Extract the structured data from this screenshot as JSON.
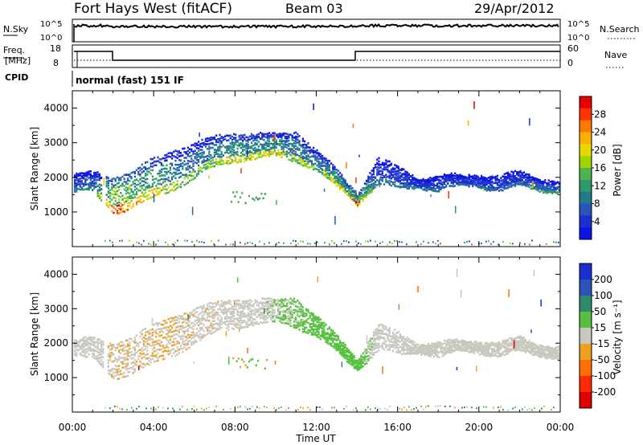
{
  "header": {
    "station": "Fort Hays West (fitACF)",
    "beam": "Beam 03",
    "date": "29/Apr/2012"
  },
  "status_panel": {
    "nsky_label": "N.Sky",
    "nsky_ticks": [
      "10^5",
      "10^0"
    ],
    "nsearch_label": "N.Search",
    "nsearch_ticks": [
      "10^5",
      "10^0"
    ],
    "freq_label_1": "Freq.",
    "freq_label_2": "[MHz]",
    "freq_ticks": [
      "18",
      "8"
    ],
    "nave_label": "Nave",
    "nave_ticks": [
      "60",
      "0"
    ],
    "cpid_label": "CPID",
    "cpid_text": "normal (fast) 151 IF"
  },
  "power_scale": {
    "label": "Power [dB]",
    "ticks": [
      "28",
      "24",
      "20",
      "16",
      "12",
      "8",
      "4"
    ],
    "colors": [
      "#e60000",
      "#ff3300",
      "#ff7a00",
      "#ffb000",
      "#e8d800",
      "#9fd400",
      "#4fb34f",
      "#2e9a6a",
      "#1f7a8c",
      "#2a54b8",
      "#1a2fd0",
      "#0a14e6"
    ]
  },
  "velocity_scale": {
    "label": "Velocity [m s⁻¹]",
    "ticks": [
      "200",
      "100",
      "50",
      "15",
      "-15",
      "-50",
      "-100",
      "-200"
    ],
    "colors": [
      "#1a2fd0",
      "#2a54b8",
      "#2e8a6a",
      "#58c040",
      "#c8c8c0",
      "#f0a020",
      "#ff7000",
      "#ff2a00",
      "#e00000"
    ]
  },
  "x_axis": {
    "title": "Time UT",
    "ticks": [
      "00:00",
      "04:00",
      "08:00",
      "12:00",
      "16:00",
      "20:00",
      "00:00"
    ]
  },
  "chart_data": [
    {
      "type": "heatmap",
      "title": "Fort Hays West (fitACF) Beam 03 29/Apr/2012",
      "quantity": "Power",
      "xlabel": "Time UT",
      "ylabel": "Slant Range [km]",
      "colorbar_label": "Power [dB]",
      "x_range_hours": [
        0,
        24
      ],
      "ylim": [
        0,
        4500
      ],
      "y_ticks": [
        1000,
        2000,
        3000,
        4000
      ],
      "colorbar_range": [
        0,
        32
      ],
      "echo_band": {
        "time_hours": [
          0,
          1,
          2,
          3,
          4,
          5,
          6,
          7,
          8,
          9,
          10,
          11,
          12,
          13,
          14,
          15,
          16,
          17,
          18,
          19,
          20,
          21,
          22,
          23,
          24
        ],
        "lower_km": [
          1600,
          1550,
          1000,
          1150,
          1400,
          1700,
          2000,
          2300,
          2500,
          2550,
          2600,
          2500,
          2200,
          1700,
          1250,
          1800,
          1650,
          1750,
          1600,
          1750,
          1750,
          1600,
          1750,
          1650,
          1550
        ],
        "upper_km": [
          2100,
          2150,
          2100,
          2250,
          2600,
          2900,
          3050,
          3200,
          3350,
          3300,
          3250,
          3400,
          2800,
          2200,
          1550,
          2600,
          2300,
          2000,
          2050,
          2050,
          2100,
          2050,
          2150,
          2000,
          1900
        ],
        "typical_power_dB": [
          8,
          12,
          26,
          24,
          20,
          16,
          14,
          16,
          20,
          18,
          18,
          16,
          14,
          18,
          26,
          8,
          8,
          8,
          8,
          8,
          8,
          8,
          8,
          12,
          12
        ]
      }
    },
    {
      "type": "heatmap",
      "quantity": "Velocity",
      "xlabel": "Time UT",
      "ylabel": "Slant Range [km]",
      "colorbar_label": "Velocity [m s⁻¹]",
      "x_range_hours": [
        0,
        24
      ],
      "ylim": [
        0,
        4500
      ],
      "y_ticks": [
        1000,
        2000,
        3000,
        4000
      ],
      "colorbar_range": [
        -250,
        250
      ],
      "echo_band": {
        "time_hours": [
          0,
          1,
          2,
          3,
          4,
          5,
          6,
          7,
          8,
          9,
          10,
          11,
          12,
          13,
          14,
          15,
          16,
          17,
          18,
          19,
          20,
          21,
          22,
          23,
          24
        ],
        "lower_km": [
          1600,
          1550,
          1000,
          1150,
          1400,
          1700,
          2000,
          2300,
          2500,
          2550,
          2600,
          2500,
          2200,
          1700,
          1250,
          1800,
          1650,
          1750,
          1600,
          1750,
          1750,
          1600,
          1750,
          1650,
          1550
        ],
        "upper_km": [
          2100,
          2150,
          2100,
          2250,
          2600,
          2900,
          3050,
          3200,
          3350,
          3300,
          3250,
          3400,
          2800,
          2200,
          1550,
          2600,
          2300,
          2000,
          2050,
          2050,
          2100,
          2050,
          2150,
          2000,
          1900
        ],
        "typical_velocity": [
          0,
          0,
          -20,
          -20,
          -30,
          -20,
          -10,
          -10,
          0,
          0,
          20,
          40,
          60,
          60,
          60,
          0,
          0,
          0,
          0,
          0,
          0,
          0,
          0,
          0,
          0
        ]
      }
    }
  ]
}
